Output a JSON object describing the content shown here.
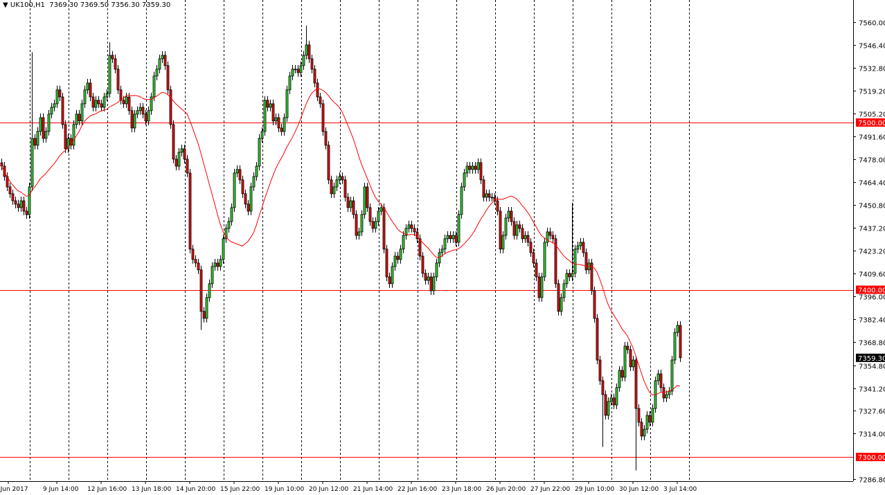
{
  "header": {
    "symbol": "UK100,H1",
    "ohlc": "7369.30 7369.50 7356.30 7359.30"
  },
  "chart_data": {
    "type": "candlestick",
    "title": "UK100,H1",
    "ylim": [
      7286.8,
      7560.0
    ],
    "y_ticks": [
      "7560.00",
      "7546.40",
      "7532.80",
      "7519.20",
      "7505.20",
      "7491.60",
      "7478.00",
      "7464.40",
      "7450.80",
      "7437.20",
      "7423.20",
      "7409.60",
      "7396.00",
      "7382.40",
      "7368.80",
      "7354.80",
      "7341.20",
      "7327.60",
      "7314.00",
      "7286.80"
    ],
    "x_labels": [
      "8 Jun 2017",
      "9 Jun 14:00",
      "12 Jun 16:00",
      "13 Jun 18:00",
      "14 Jun 20:00",
      "15 Jun 22:00",
      "19 Jun 10:00",
      "20 Jun 12:00",
      "21 Jun 14:00",
      "22 Jun 16:00",
      "23 Jun 18:00",
      "26 Jun 20:00",
      "27 Jun 22:00",
      "29 Jun 10:00",
      "30 Jun 12:00",
      "3 Jul 14:00"
    ],
    "grid": "vertical dashed",
    "horizontal_lines": [
      7500.0,
      7400.0,
      7300.0
    ],
    "horizontal_line_labels": [
      "7500.00",
      "7400.00",
      "7300.00"
    ],
    "current_price": "7359.30",
    "moving_average_period": 20,
    "colors": {
      "bull": "#32cd32",
      "bear": "#e01010",
      "ma": "#ff0000",
      "levels": "#ff0000",
      "grid": "#000000"
    },
    "closes": [
      7473.9,
      7467.7,
      7461.5,
      7457.4,
      7453.2,
      7451.2,
      7449.1,
      7453.2,
      7447.0,
      7444.9,
      7461.5,
      7490.5,
      7486.4,
      7494.7,
      7502.9,
      7490.5,
      7494.7,
      7505.0,
      7509.1,
      7511.2,
      7519.5,
      7515.3,
      7498.8,
      7484.3,
      7490.5,
      7486.4,
      7498.8,
      7505.0,
      7500.9,
      7511.2,
      7519.5,
      7523.6,
      7515.3,
      7509.1,
      7513.3,
      7511.2,
      7509.1,
      7515.3,
      7517.4,
      7540.2,
      7538.1,
      7531.9,
      7519.5,
      7513.3,
      7511.2,
      7515.3,
      7507.1,
      7496.7,
      7505.0,
      7507.1,
      7509.1,
      7505.0,
      7500.9,
      7507.1,
      7515.3,
      7527.8,
      7531.9,
      7538.1,
      7540.2,
      7534.0,
      7519.5,
      7498.8,
      7478.1,
      7473.9,
      7482.2,
      7484.3,
      7478.1,
      7469.8,
      7424.3,
      7418.1,
      7416.0,
      7411.9,
      7387.1,
      7382.9,
      7395.3,
      7403.6,
      7413.9,
      7416.0,
      7413.9,
      7418.1,
      7430.5,
      7436.7,
      7440.8,
      7449.1,
      7469.8,
      7471.9,
      7465.7,
      7457.4,
      7451.2,
      7447.0,
      7461.5,
      7467.7,
      7473.9,
      7490.5,
      7494.6,
      7513.3,
      7509.1,
      7511.2,
      7500.9,
      7502.9,
      7496.7,
      7494.6,
      7502.9,
      7519.5,
      7527.8,
      7531.9,
      7531.9,
      7529.8,
      7534.0,
      7540.2,
      7546.4,
      7538.1,
      7531.9,
      7523.6,
      7515.3,
      7511.2,
      7494.6,
      7486.4,
      7465.7,
      7457.4,
      7461.5,
      7465.7,
      7467.7,
      7465.7,
      7455.3,
      7449.1,
      7453.2,
      7445.0,
      7432.5,
      7434.6,
      7445.0,
      7461.5,
      7449.1,
      7440.8,
      7436.7,
      7440.8,
      7447.0,
      7449.1,
      7424.3,
      7407.7,
      7403.6,
      7413.9,
      7420.1,
      7418.1,
      7424.3,
      7432.5,
      7436.7,
      7438.8,
      7436.7,
      7434.6,
      7430.5,
      7420.1,
      7409.8,
      7405.6,
      7407.7,
      7399.4,
      7407.7,
      7416.0,
      7422.2,
      7424.3,
      7430.5,
      7432.5,
      7430.5,
      7432.5,
      7428.4,
      7445.0,
      7461.5,
      7469.8,
      7473.9,
      7471.9,
      7473.9,
      7471.9,
      7476.0,
      7465.7,
      7455.3,
      7457.4,
      7455.3,
      7455.3,
      7453.2,
      7447.0,
      7424.3,
      7432.5,
      7442.9,
      7447.0,
      7440.8,
      7432.5,
      7438.8,
      7436.7,
      7430.5,
      7432.5,
      7428.4,
      7422.2,
      7416.0,
      7407.7,
      7395.3,
      7407.7,
      7428.4,
      7434.6,
      7432.5,
      7430.5,
      7403.6,
      7387.1,
      7395.3,
      7403.6,
      7409.8,
      7407.7,
      7409.8,
      7424.3,
      7426.3,
      7428.4,
      7422.2,
      7411.9,
      7416.0,
      7399.4,
      7382.9,
      7358.0,
      7345.6,
      7337.3,
      7324.9,
      7333.2,
      7335.3,
      7331.1,
      7341.5,
      7351.8,
      7347.7,
      7366.3,
      7364.2,
      7353.9,
      7358.0,
      7329.0,
      7320.8,
      7312.5,
      7316.6,
      7324.9,
      7320.8,
      7329.0,
      7345.6,
      7349.7,
      7341.5,
      7335.3,
      7337.3,
      7339.4,
      7358.0,
      7374.5,
      7378.7,
      7359.3
    ],
    "notable_wicks": [
      {
        "bar": 11,
        "high": 7542.0
      },
      {
        "bar": 39,
        "high": 7548.0
      },
      {
        "bar": 72,
        "low": 7376.0
      },
      {
        "bar": 110,
        "high": 7558.0
      },
      {
        "bar": 206,
        "high": 7452.0
      },
      {
        "bar": 217,
        "low": 7306.0
      },
      {
        "bar": 229,
        "low": 7292.0
      }
    ]
  }
}
